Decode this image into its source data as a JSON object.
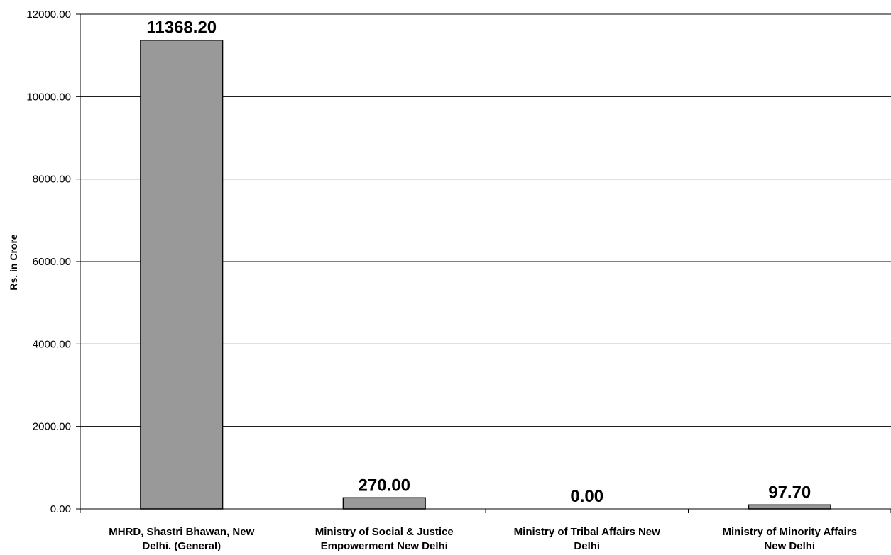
{
  "chart_data": {
    "type": "bar",
    "title": "",
    "xlabel": "",
    "ylabel": "Rs. in Crore",
    "ylim": [
      0,
      12000
    ],
    "yticks": [
      "0.00",
      "2000.00",
      "4000.00",
      "6000.00",
      "8000.00",
      "10000.00",
      "12000.00"
    ],
    "grid": true,
    "categories": [
      [
        "MHRD,  Shastri Bhawan, New",
        "Delhi. (General)"
      ],
      [
        "Ministry of Social & Justice",
        "Empowerment New Delhi"
      ],
      [
        "Ministry of Tribal Affairs New",
        "Delhi"
      ],
      [
        "Ministry of Minority Affairs",
        "New Delhi"
      ]
    ],
    "values": [
      11368.2,
      270.0,
      0.0,
      97.7
    ],
    "data_labels": [
      "11368.20",
      "270.00",
      "0.00",
      "97.70"
    ],
    "bar_color": "#999999"
  }
}
